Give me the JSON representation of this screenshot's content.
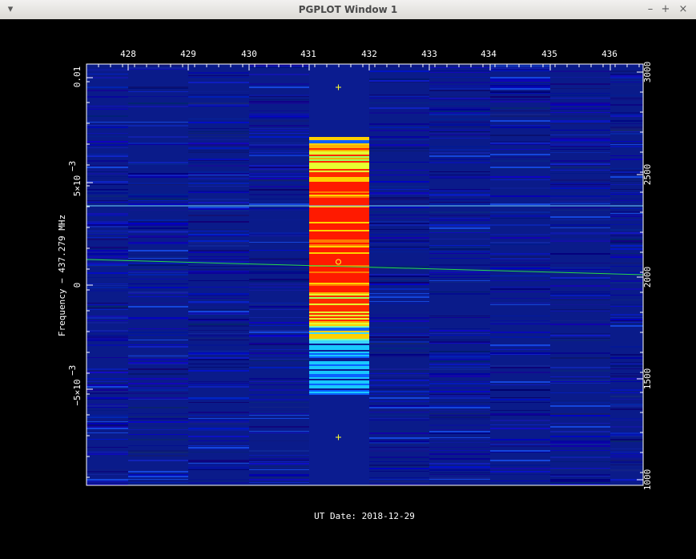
{
  "window": {
    "title": "PGPLOT Window 1",
    "menu_icon": "triangle-down-icon",
    "minimize_label": "–",
    "maximize_label": "+",
    "close_label": "×"
  },
  "plot": {
    "ylabel": "Frequency − 437.279 MHz",
    "xlabel": "UT Date: 2018-12-29",
    "top_ticks": [
      "428",
      "429",
      "430",
      "431",
      "432",
      "433",
      "434",
      "435",
      "436"
    ],
    "left_ticks": [
      "0.01",
      "5×10",
      "0",
      "−5×10"
    ],
    "left_tick_exponent": "−3",
    "right_ticks": [
      "1000",
      "1500",
      "2000",
      "2500",
      "3000"
    ],
    "colors": {
      "background": "#000000",
      "frame": "#ffffff",
      "noise": "#0a1b8a",
      "signal": "#ff1a00",
      "cyan_line": "#6fd6ff",
      "green_line": "#27d94a",
      "marker": "#ffff33"
    }
  }
}
